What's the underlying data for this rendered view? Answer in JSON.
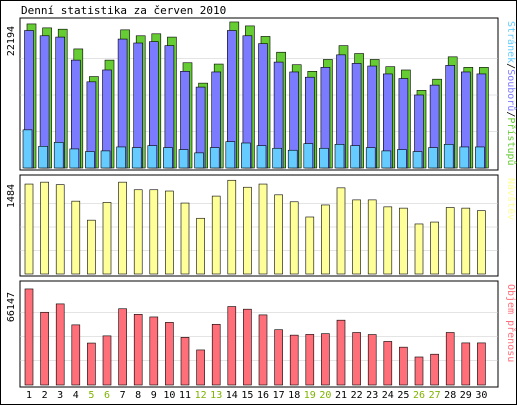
{
  "title": "Denní statistika za červen 2010",
  "colors": {
    "background": "#ffffff",
    "frame": "#000000",
    "grid": "#c8c8c8",
    "weekend": "#7fb300",
    "weekday": "#000000",
    "hits": "#66cc33",
    "files": "#7b7bff",
    "pages": "#66ccff",
    "visits": "#ffff99",
    "kbytes": "#ff6f7a"
  },
  "chart_data": [
    {
      "type": "bar",
      "panel": "hits-files-pages",
      "categories": [
        "1",
        "2",
        "3",
        "4",
        "5",
        "6",
        "7",
        "8",
        "9",
        "10",
        "11",
        "12",
        "13",
        "14",
        "15",
        "16",
        "17",
        "18",
        "19",
        "20",
        "21",
        "22",
        "23",
        "24",
        "25",
        "26",
        "27",
        "28",
        "29",
        "30"
      ],
      "weekend_days": [
        5,
        6,
        12,
        13,
        19,
        20,
        26,
        27
      ],
      "ymax_label": "22194",
      "ylim": [
        0,
        22194
      ],
      "legend": [
        "Stránek",
        "Souborů",
        "Přístupů"
      ],
      "legend_separator": "/",
      "series": [
        {
          "name": "Přístupů",
          "color": "#66cc33",
          "values": [
            21900,
            21300,
            21100,
            18100,
            13900,
            16400,
            21000,
            20100,
            20400,
            19900,
            16000,
            12900,
            15800,
            22200,
            21600,
            20000,
            17600,
            15700,
            14700,
            16500,
            18600,
            17400,
            16500,
            15400,
            14900,
            11800,
            13500,
            16900,
            15300,
            15300
          ]
        },
        {
          "name": "Souborů",
          "color": "#7b7bff",
          "values": [
            20900,
            20100,
            19900,
            16400,
            13100,
            14900,
            19600,
            19000,
            19200,
            18600,
            14700,
            12300,
            14600,
            20900,
            20100,
            18900,
            16100,
            14600,
            13800,
            15300,
            17200,
            15900,
            15500,
            14300,
            13600,
            11100,
            12600,
            15600,
            14600,
            14300
          ]
        },
        {
          "name": "Stránek",
          "color": "#66ccff",
          "values": [
            5800,
            3300,
            3900,
            2900,
            2500,
            2600,
            3200,
            3100,
            3400,
            3100,
            2800,
            2300,
            3100,
            4000,
            3800,
            3400,
            3000,
            2700,
            3700,
            3000,
            3600,
            3400,
            3100,
            2600,
            2800,
            2500,
            3100,
            3600,
            3200,
            3200
          ]
        }
      ]
    },
    {
      "type": "bar",
      "panel": "visits",
      "categories": [
        "1",
        "2",
        "3",
        "4",
        "5",
        "6",
        "7",
        "8",
        "9",
        "10",
        "11",
        "12",
        "13",
        "14",
        "15",
        "16",
        "17",
        "18",
        "19",
        "20",
        "21",
        "22",
        "23",
        "24",
        "25",
        "26",
        "27",
        "28",
        "29",
        "30"
      ],
      "ymax_label": "1484",
      "ylim": [
        0,
        1484
      ],
      "legend": [
        "Návštěv"
      ],
      "series": [
        {
          "name": "Návštěv",
          "color": "#ffff99",
          "values": [
            1420,
            1450,
            1410,
            1150,
            850,
            1130,
            1450,
            1330,
            1330,
            1310,
            1120,
            880,
            1230,
            1480,
            1370,
            1420,
            1250,
            1140,
            900,
            1090,
            1360,
            1170,
            1170,
            1060,
            1040,
            790,
            820,
            1050,
            1040,
            1000
          ]
        }
      ]
    },
    {
      "type": "bar",
      "panel": "kbytes",
      "categories": [
        "1",
        "2",
        "3",
        "4",
        "5",
        "6",
        "7",
        "8",
        "9",
        "10",
        "11",
        "12",
        "13",
        "14",
        "15",
        "16",
        "17",
        "18",
        "19",
        "20",
        "21",
        "22",
        "23",
        "24",
        "25",
        "26",
        "27",
        "28",
        "29",
        "30"
      ],
      "ymax_label": "66147",
      "ylim": [
        0,
        66147
      ],
      "legend": [
        "Objem přenosu"
      ],
      "series": [
        {
          "name": "Objem přenosu",
          "color": "#ff6f7a",
          "values": [
            65500,
            49600,
            55300,
            41000,
            28600,
            33500,
            52000,
            48200,
            46400,
            42700,
            32500,
            23900,
            41400,
            53500,
            51700,
            47800,
            37700,
            34000,
            34500,
            35000,
            44200,
            35800,
            34400,
            29700,
            25800,
            19100,
            21000,
            35800,
            28700,
            28700
          ]
        }
      ]
    }
  ]
}
